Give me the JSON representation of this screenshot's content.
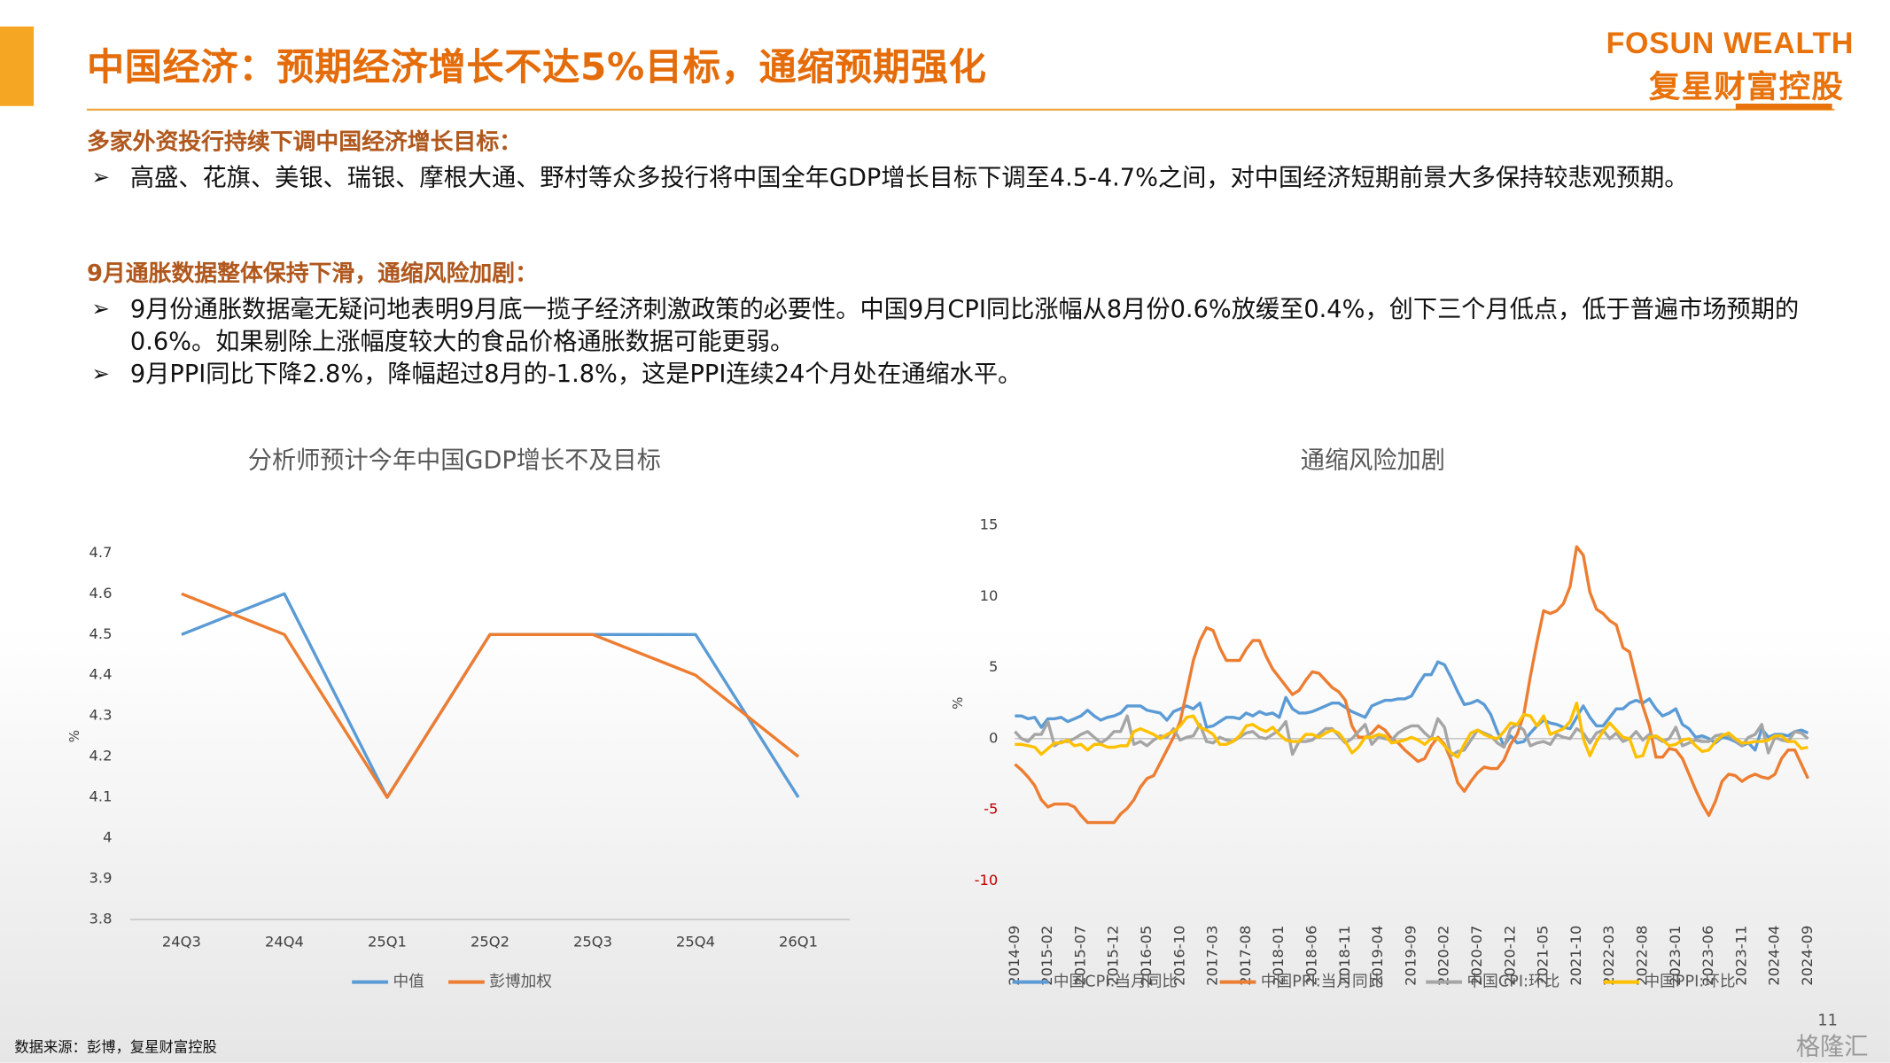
{
  "header": {
    "title": "中国经济：预期经济增长不达5%目标，通缩预期强化",
    "logo_en": "FOSUN WEALTH",
    "logo_cn": "复星财富控股"
  },
  "sections": [
    {
      "heading": "多家外资投行持续下调中国经济增长目标：",
      "bullets": [
        "高盛、花旗、美银、瑞银、摩根大通、野村等众多投行将中国全年GDP增长目标下调至4.5-4.7%之间，对中国经济短期前景大多保持较悲观预期。"
      ]
    },
    {
      "heading": "9月通胀数据整体保持下滑，通缩风险加剧：",
      "bullets": [
        "9月份通胀数据毫无疑问地表明9月底一揽子经济刺激政策的必要性。中国9月CPI同比涨幅从8月份0.6%放缓至0.4%，创下三个月低点，低于普遍市场预期的0.6%。如果剔除上涨幅度较大的食品价格通胀数据可能更弱。",
        "9月PPI同比下降2.8%，降幅超过8月的-1.8%，这是PPI连续24个月处在通缩水平。"
      ]
    }
  ],
  "chart_data": [
    {
      "type": "line",
      "title": "分析师预计今年中国GDP增长不及目标",
      "y_label": "%",
      "categories": [
        "24Q3",
        "24Q4",
        "25Q1",
        "25Q2",
        "25Q3",
        "25Q4",
        "26Q1"
      ],
      "ylim": [
        3.8,
        4.7
      ],
      "yticks": [
        3.8,
        3.9,
        4,
        4.1,
        4.2,
        4.3,
        4.4,
        4.5,
        4.6,
        4.7
      ],
      "series": [
        {
          "name": "中值",
          "color": "#5b9bd5",
          "values": [
            4.5,
            4.6,
            4.1,
            4.5,
            4.5,
            4.5,
            4.1
          ]
        },
        {
          "name": "彭博加权",
          "color": "#ed7d31",
          "values": [
            4.6,
            4.5,
            4.1,
            4.5,
            4.5,
            4.4,
            4.2
          ]
        }
      ]
    },
    {
      "type": "line",
      "title": "通缩风险加剧",
      "y_label": "%",
      "negative_tick_color": "#c00000",
      "categories": [
        "2014-09",
        null,
        null,
        null,
        null,
        "2015-02",
        null,
        null,
        null,
        null,
        "2015-07",
        null,
        null,
        null,
        null,
        "2015-12",
        null,
        null,
        null,
        null,
        "2016-05",
        null,
        null,
        null,
        null,
        "2016-10",
        null,
        null,
        null,
        null,
        "2017-03",
        null,
        null,
        null,
        null,
        "2017-08",
        null,
        null,
        null,
        null,
        "2018-01",
        null,
        null,
        null,
        null,
        "2018-06",
        null,
        null,
        null,
        null,
        "2018-11",
        null,
        null,
        null,
        null,
        "2019-04",
        null,
        null,
        null,
        null,
        "2019-09",
        null,
        null,
        null,
        null,
        "2020-02",
        null,
        null,
        null,
        null,
        "2020-07",
        null,
        null,
        null,
        null,
        "2020-12",
        null,
        null,
        null,
        null,
        "2021-05",
        null,
        null,
        null,
        null,
        "2021-10",
        null,
        null,
        null,
        null,
        "2022-03",
        null,
        null,
        null,
        null,
        "2022-08",
        null,
        null,
        null,
        null,
        "2023-01",
        null,
        null,
        null,
        null,
        "2023-06",
        null,
        null,
        null,
        null,
        "2023-11",
        null,
        null,
        null,
        null,
        "2024-04",
        null,
        null,
        null,
        null,
        "2024-09"
      ],
      "ylim": [
        -10,
        15
      ],
      "yticks": [
        -10,
        -5,
        0,
        5,
        10,
        15
      ],
      "series": [
        {
          "name": "中国CPI:当月同比",
          "color": "#5b9bd5",
          "values": [
            1.6,
            1.6,
            1.4,
            1.5,
            0.8,
            1.4,
            1.4,
            1.5,
            1.2,
            1.4,
            1.6,
            2.0,
            1.6,
            1.3,
            1.5,
            1.6,
            1.8,
            2.3,
            2.3,
            2.3,
            2.0,
            1.9,
            1.8,
            1.3,
            1.9,
            2.1,
            2.3,
            2.1,
            2.5,
            0.8,
            0.9,
            1.2,
            1.5,
            1.5,
            1.4,
            1.8,
            1.6,
            1.9,
            1.7,
            1.8,
            1.5,
            2.9,
            2.1,
            1.8,
            1.8,
            1.9,
            2.1,
            2.3,
            2.5,
            2.5,
            2.2,
            1.9,
            1.7,
            1.5,
            2.3,
            2.5,
            2.7,
            2.7,
            2.8,
            2.8,
            3.0,
            3.8,
            4.5,
            4.5,
            5.4,
            5.2,
            4.3,
            3.3,
            2.4,
            2.5,
            2.7,
            2.4,
            1.7,
            0.5,
            -0.5,
            0.2,
            -0.3,
            -0.2,
            0.4,
            0.9,
            1.3,
            1.1,
            1.0,
            0.8,
            0.7,
            1.5,
            2.3,
            1.5,
            0.9,
            0.9,
            1.5,
            2.1,
            2.1,
            2.5,
            2.7,
            2.5,
            2.8,
            2.1,
            1.6,
            1.8,
            2.1,
            1.0,
            0.7,
            0.1,
            0.2,
            0.0,
            -0.3,
            0.1,
            0.0,
            -0.2,
            -0.5,
            -0.3,
            -0.8,
            0.7,
            0.1,
            0.3,
            0.3,
            0.2,
            0.5,
            0.6,
            0.4
          ]
        },
        {
          "name": "中国PPI:当月同比",
          "color": "#ed7d31",
          "values": [
            -1.8,
            -2.2,
            -2.7,
            -3.3,
            -4.3,
            -4.8,
            -4.6,
            -4.6,
            -4.6,
            -4.8,
            -5.4,
            -5.9,
            -5.9,
            -5.9,
            -5.9,
            -5.9,
            -5.3,
            -4.9,
            -4.3,
            -3.4,
            -2.8,
            -2.6,
            -1.7,
            -0.8,
            0.1,
            1.2,
            3.3,
            5.5,
            6.9,
            7.8,
            7.6,
            6.4,
            5.5,
            5.5,
            5.5,
            6.3,
            6.9,
            6.9,
            5.8,
            4.9,
            4.3,
            3.7,
            3.1,
            3.4,
            4.1,
            4.7,
            4.6,
            4.1,
            3.6,
            3.3,
            2.7,
            0.9,
            0.1,
            0.1,
            0.4,
            0.9,
            0.6,
            0.0,
            -0.3,
            -0.8,
            -1.2,
            -1.6,
            -1.4,
            -0.5,
            0.1,
            -0.4,
            -1.5,
            -3.1,
            -3.7,
            -3.0,
            -2.4,
            -2.0,
            -2.1,
            -2.1,
            -1.5,
            -0.4,
            0.3,
            1.7,
            4.4,
            6.8,
            9.0,
            8.8,
            9.0,
            9.5,
            10.7,
            13.5,
            12.9,
            10.3,
            9.1,
            8.8,
            8.3,
            8.0,
            6.4,
            6.1,
            4.2,
            2.3,
            0.9,
            -1.3,
            -1.3,
            -0.7,
            -0.8,
            -1.4,
            -2.5,
            -3.6,
            -4.6,
            -5.4,
            -4.4,
            -3.0,
            -2.5,
            -2.6,
            -3.0,
            -2.7,
            -2.5,
            -2.7,
            -2.8,
            -2.5,
            -1.4,
            -0.8,
            -0.8,
            -1.8,
            -2.8
          ]
        },
        {
          "name": "中国CPI:环比",
          "color": "#a5a5a5",
          "values": [
            0.5,
            0.0,
            -0.2,
            0.3,
            0.3,
            1.2,
            -0.5,
            -0.2,
            -0.2,
            0.0,
            0.3,
            0.5,
            0.1,
            -0.3,
            0.0,
            0.5,
            0.5,
            1.6,
            -0.4,
            -0.2,
            -0.5,
            -0.1,
            0.2,
            0.1,
            0.7,
            -0.1,
            0.1,
            0.2,
            1.0,
            -0.2,
            -0.3,
            0.1,
            -0.1,
            -0.2,
            0.1,
            0.4,
            0.5,
            0.1,
            0.0,
            0.3,
            0.6,
            1.2,
            -1.1,
            -0.2,
            -0.2,
            -0.1,
            0.3,
            0.7,
            0.7,
            0.2,
            -0.3,
            0.0,
            0.5,
            1.0,
            -0.4,
            0.1,
            0.0,
            -0.1,
            0.4,
            0.7,
            0.9,
            0.9,
            0.4,
            0.0,
            1.4,
            0.8,
            -1.2,
            -0.9,
            -0.8,
            -0.1,
            0.6,
            0.4,
            0.2,
            -0.3,
            -0.6,
            0.7,
            1.0,
            0.6,
            -0.5,
            -0.3,
            -0.2,
            -0.4,
            0.3,
            0.1,
            0.0,
            0.7,
            0.4,
            -0.3,
            0.4,
            0.6,
            0.0,
            0.4,
            -0.2,
            0.0,
            0.5,
            -0.1,
            0.3,
            0.1,
            -0.2,
            0.0,
            0.8,
            -0.5,
            -0.3,
            -0.1,
            -0.2,
            -0.2,
            0.2,
            0.3,
            0.2,
            -0.1,
            -0.5,
            0.1,
            0.3,
            1.0,
            -1.0,
            0.1,
            -0.1,
            -0.2,
            0.5,
            0.4,
            0.0
          ]
        },
        {
          "name": "中国PPI:环比",
          "color": "#ffc000",
          "values": [
            -0.4,
            -0.4,
            -0.5,
            -0.6,
            -1.1,
            -0.7,
            -0.3,
            -0.3,
            -0.1,
            -0.5,
            -0.4,
            -0.8,
            -0.4,
            -0.4,
            -0.6,
            -0.6,
            -0.5,
            -0.5,
            0.5,
            0.7,
            0.5,
            0.3,
            0.0,
            0.3,
            0.5,
            0.9,
            1.5,
            1.6,
            0.8,
            0.6,
            0.3,
            -0.4,
            -0.4,
            -0.2,
            0.2,
            0.9,
            1.0,
            0.7,
            0.5,
            0.8,
            0.3,
            -0.1,
            -0.2,
            -0.2,
            0.3,
            0.3,
            0.1,
            0.4,
            0.6,
            0.4,
            -0.2,
            -1.0,
            -0.6,
            0.1,
            0.1,
            0.3,
            0.2,
            -0.3,
            -0.2,
            -0.1,
            0.1,
            -0.1,
            -0.4,
            0.0,
            0.0,
            -0.5,
            -1.0,
            -1.3,
            -0.4,
            0.4,
            0.6,
            0.3,
            0.1,
            0.0,
            0.5,
            1.1,
            1.0,
            1.7,
            1.6,
            0.9,
            1.6,
            0.3,
            0.5,
            0.7,
            1.2,
            2.5,
            0.0,
            -1.2,
            -0.2,
            0.5,
            1.1,
            0.6,
            0.1,
            0.0,
            -1.3,
            -1.2,
            0.1,
            0.2,
            -0.1,
            -0.5,
            -0.4,
            -0.1,
            0.0,
            -0.5,
            -0.9,
            -0.8,
            -0.2,
            0.2,
            0.4,
            0.0,
            -0.3,
            -0.3,
            -0.2,
            -0.2,
            -0.1,
            0.2,
            0.2,
            -0.2,
            -0.2,
            -0.7,
            -0.6
          ]
        }
      ]
    }
  ],
  "footer": {
    "source": "数据来源：彭博，复星财富控股",
    "page": "11",
    "watermark": "格隆汇"
  }
}
